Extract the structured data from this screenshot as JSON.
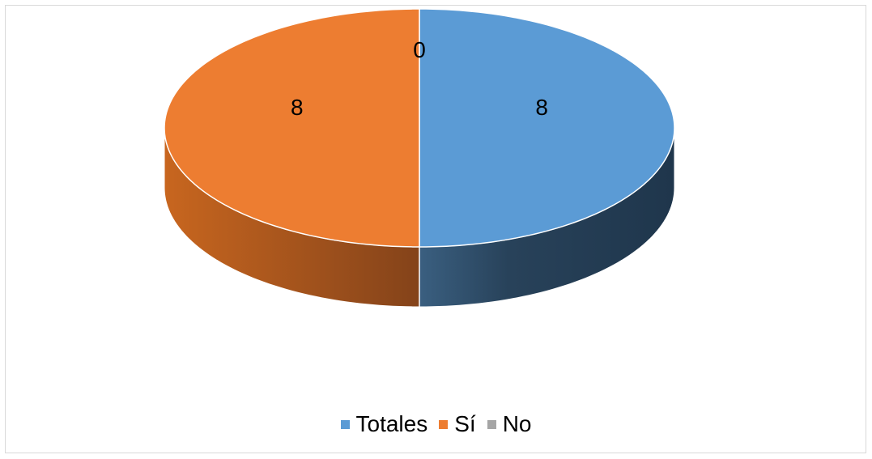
{
  "chart_data": {
    "type": "pie",
    "style": "3d",
    "categories": [
      "Totales",
      "Sí",
      "No"
    ],
    "values": [
      8,
      8,
      0
    ],
    "colors": [
      "#5b9bd5",
      "#ed7d31",
      "#a5a5a5"
    ],
    "data_labels": [
      "8",
      "8",
      "0"
    ],
    "legend_position": "bottom",
    "title": ""
  }
}
